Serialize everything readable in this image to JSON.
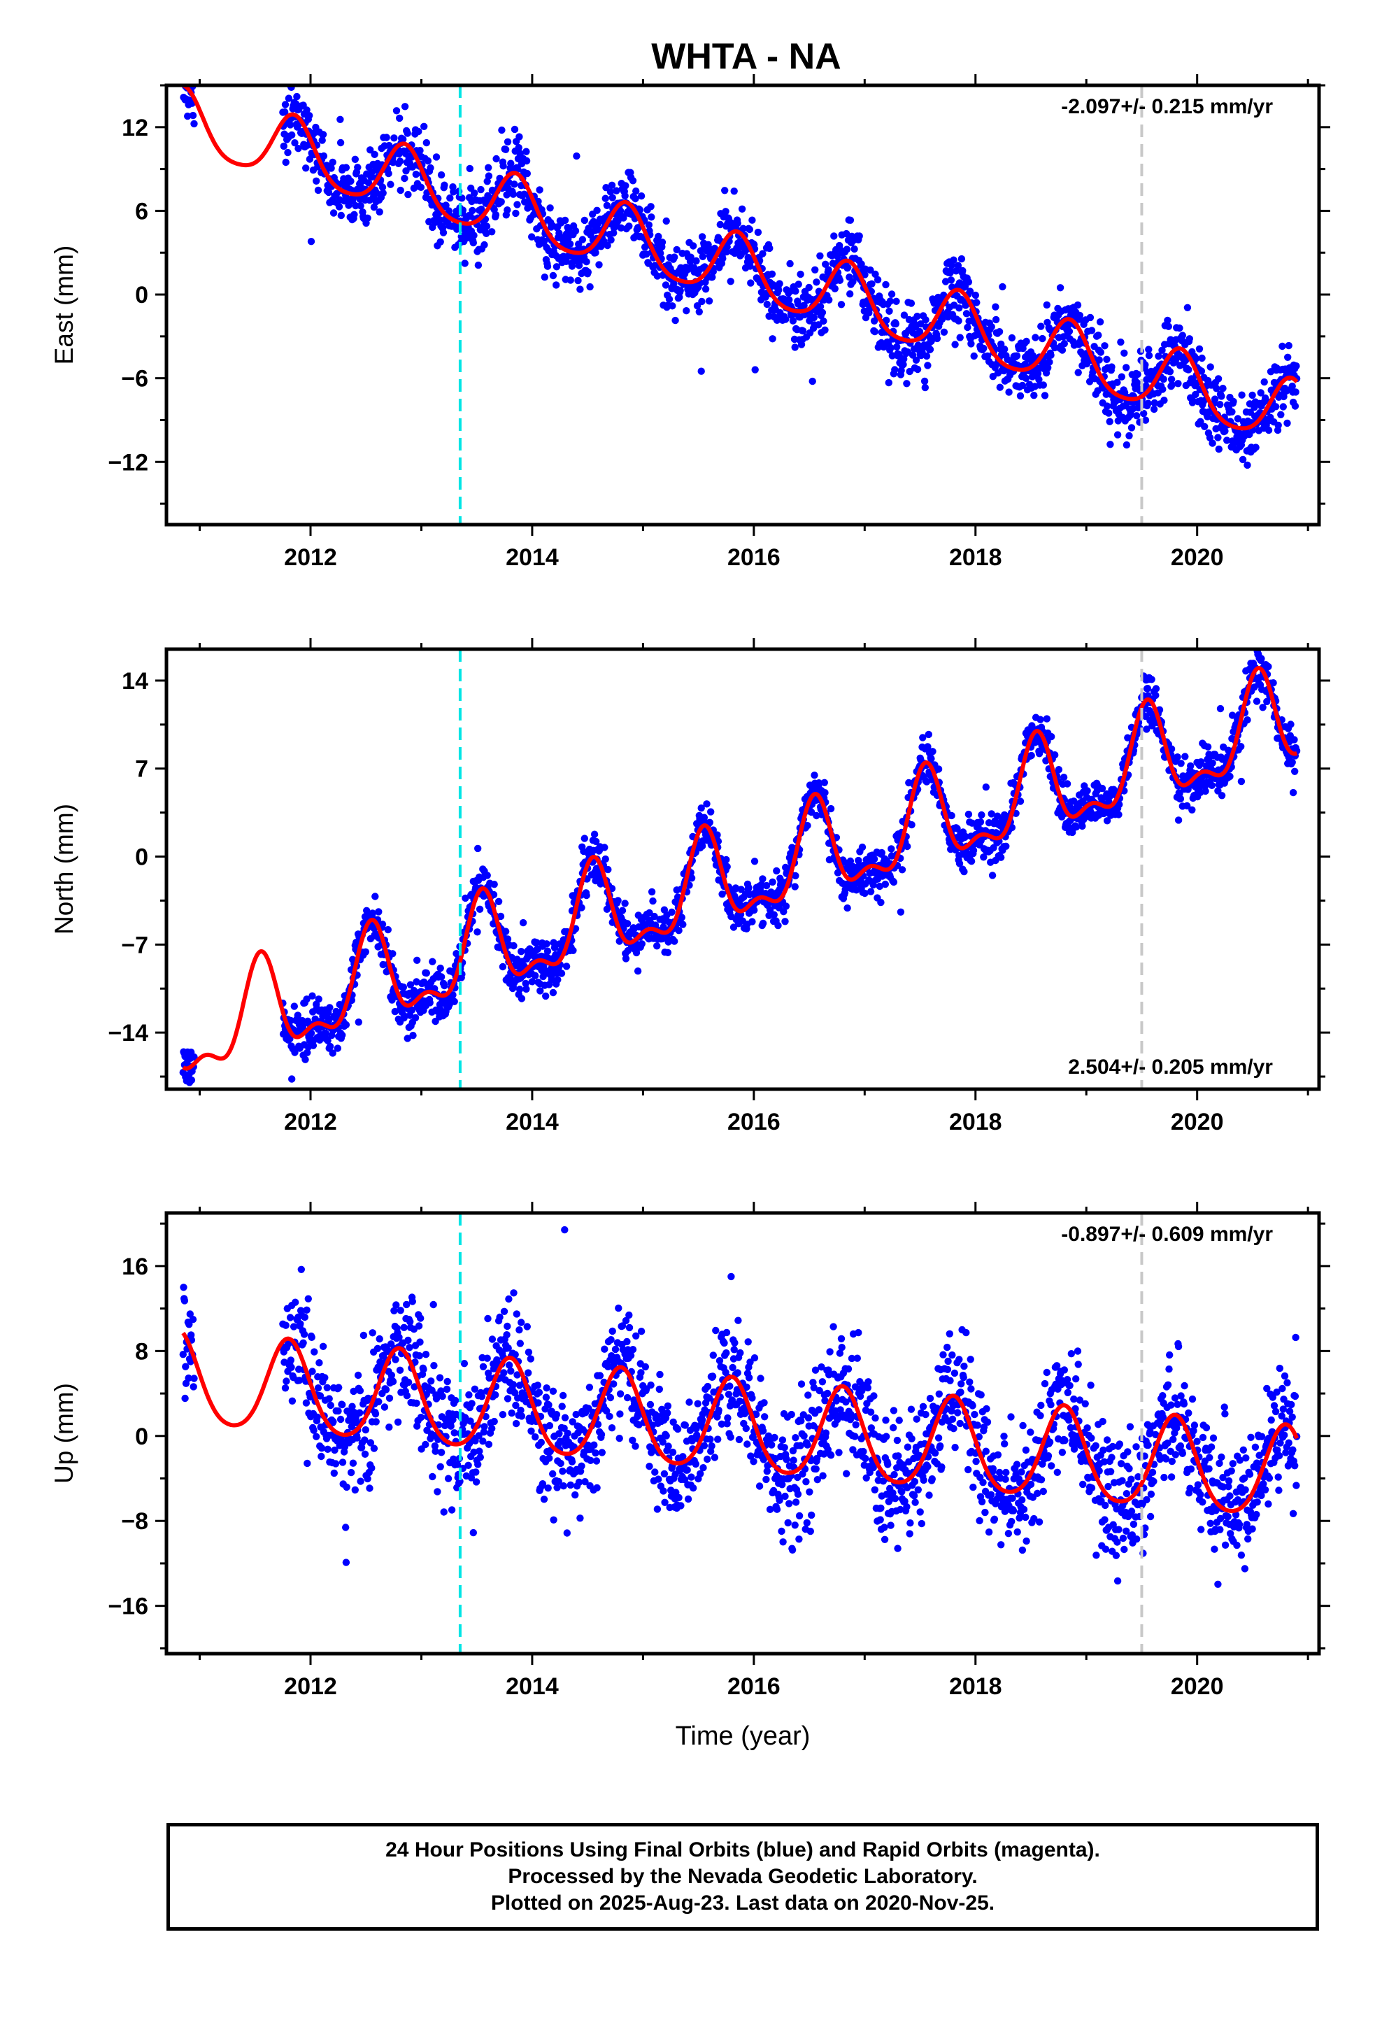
{
  "title": "WHTA - NA",
  "colors": {
    "final_points": "#0000ff",
    "model": "#ff0000",
    "antenna_change": "#00e5e5",
    "event_marker": "#c8c8c8"
  },
  "chart_data": [
    {
      "type": "scatter",
      "component": "east",
      "ylabel": "East (mm)",
      "xlim": [
        2010.7,
        2021.1
      ],
      "ylim": [
        -16.5,
        15
      ],
      "xticks": [
        2012,
        2014,
        2016,
        2018,
        2020
      ],
      "yticks": [
        -12,
        -6,
        0,
        6,
        12
      ],
      "rate": "-2.097+/- 0.215 mm/yr",
      "rate_position": "top-right",
      "velocity_mm_per_yr": -2.097,
      "offset_at_2016": 1.5,
      "annual_amplitude_mm": 2.3,
      "annual_peak_year_fraction": 0.85,
      "semiannual_amplitude_mm": 0.4,
      "scatter_sigma_mm": 1.3,
      "data_start": 2010.85,
      "data_gap": [
        2010.95,
        2011.75
      ],
      "data_end": 2020.9,
      "vertical_lines": [
        {
          "x": 2013.35,
          "style": "cyan-dashed"
        },
        {
          "x": 2019.5,
          "style": "gray-dashed"
        }
      ]
    },
    {
      "type": "scatter",
      "component": "north",
      "ylabel": "North (mm)",
      "xlim": [
        2010.7,
        2021.1
      ],
      "ylim": [
        -18.5,
        16.5
      ],
      "xticks": [
        2012,
        2014,
        2016,
        2018,
        2020
      ],
      "yticks": [
        -14,
        -7,
        0,
        7,
        14
      ],
      "rate": "2.504+/- 0.205 mm/yr",
      "rate_position": "bottom-right",
      "velocity_mm_per_yr": 2.504,
      "offset_at_2016": -1.5,
      "annual_amplitude_mm": 3.5,
      "annual_peak_year_fraction": 0.55,
      "semiannual_amplitude_mm": 1.6,
      "scatter_sigma_mm": 1.0,
      "data_start": 2010.85,
      "data_gap": [
        2010.95,
        2011.75
      ],
      "data_end": 2020.9,
      "vertical_lines": [
        {
          "x": 2013.35,
          "style": "cyan-dashed"
        },
        {
          "x": 2019.5,
          "style": "gray-dashed"
        }
      ]
    },
    {
      "type": "scatter",
      "component": "up",
      "ylabel": "Up (mm)",
      "xlabel": "Time (year)",
      "xlim": [
        2010.7,
        2021.1
      ],
      "ylim": [
        -20.5,
        21
      ],
      "xticks": [
        2012,
        2014,
        2016,
        2018,
        2020
      ],
      "yticks": [
        -16,
        -8,
        0,
        8,
        16
      ],
      "rate": "-0.897+/- 0.609 mm/yr",
      "rate_position": "top-right",
      "velocity_mm_per_yr": -0.897,
      "offset_at_2016": 0.5,
      "annual_amplitude_mm": 4.3,
      "annual_peak_year_fraction": 0.8,
      "semiannual_amplitude_mm": 0.6,
      "scatter_sigma_mm": 3.0,
      "data_start": 2010.85,
      "data_gap": [
        2010.95,
        2011.75
      ],
      "data_end": 2020.9,
      "vertical_lines": [
        {
          "x": 2013.35,
          "style": "cyan-dashed"
        },
        {
          "x": 2019.5,
          "style": "gray-dashed"
        }
      ]
    }
  ],
  "footer": {
    "line1": "24 Hour Positions Using Final Orbits (blue) and Rapid Orbits (magenta).",
    "line2": "Processed by the Nevada Geodetic Laboratory.",
    "line3": "Plotted on 2025-Aug-23. Last data on 2020-Nov-25."
  }
}
